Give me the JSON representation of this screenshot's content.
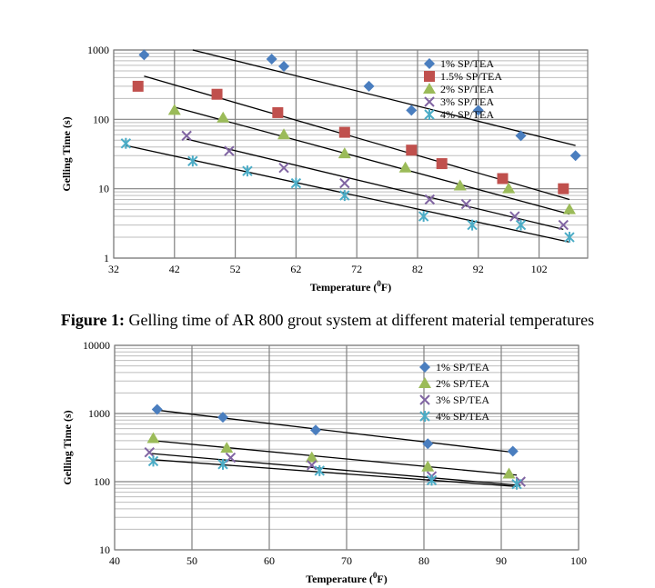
{
  "caption": {
    "label": "Figure 1:",
    "text": " Gelling time of AR 800 grout system at different material temperatures"
  },
  "chart_data": [
    {
      "type": "scatter",
      "xlabel": "Temperature (",
      "xlabel_sup": "0",
      "xlabel_unit": "F)",
      "ylabel": "Gelling Time (s)",
      "yscale": "log",
      "xlim": [
        32,
        110
      ],
      "ylim": [
        1,
        1000
      ],
      "xticks": [
        32,
        42,
        52,
        62,
        72,
        82,
        92,
        102
      ],
      "yticks": [
        1,
        10,
        100,
        1000
      ],
      "grid": true,
      "legend_position": "top-right",
      "series": [
        {
          "name": "1% SP/TEA",
          "marker": "diamond",
          "color": "#4a7ebf",
          "x": [
            37,
            58,
            60,
            74,
            81,
            92,
            99,
            108
          ],
          "y": [
            850,
            740,
            580,
            300,
            135,
            135,
            58,
            30
          ],
          "trend": [
            [
              45,
              1000
            ],
            [
              108,
              42
            ]
          ]
        },
        {
          "name": "1.5% SP/TEA",
          "marker": "square",
          "color": "#c0504d",
          "x": [
            36,
            49,
            59,
            70,
            81,
            86,
            96,
            106
          ],
          "y": [
            300,
            230,
            125,
            65,
            36,
            23,
            14,
            10
          ],
          "trend": [
            [
              37,
              420
            ],
            [
              107,
              7
            ]
          ]
        },
        {
          "name": "2% SP/TEA",
          "marker": "triangle",
          "color": "#9bbb59",
          "x": [
            42,
            50,
            60,
            70,
            80,
            89,
            97,
            107
          ],
          "y": [
            135,
            105,
            60,
            32,
            20,
            11,
            10,
            5
          ],
          "trend": [
            [
              42,
              150
            ],
            [
              107,
              4.3
            ]
          ]
        },
        {
          "name": "3% SP/TEA",
          "marker": "x",
          "color": "#8064a2",
          "x": [
            44,
            51,
            60,
            70,
            84,
            90,
            98,
            106
          ],
          "y": [
            58,
            35,
            20,
            12,
            7,
            6,
            4,
            3
          ],
          "trend": [
            [
              44,
              52
            ],
            [
              106,
              2.6
            ]
          ]
        },
        {
          "name": "4% SP/TEA",
          "marker": "star",
          "color": "#4bacc6",
          "x": [
            34,
            45,
            54,
            62,
            70,
            83,
            91,
            99,
            107
          ],
          "y": [
            45,
            25,
            18,
            12,
            8,
            4,
            3,
            3,
            2
          ],
          "trend": [
            [
              34,
              42
            ],
            [
              107,
              1.7
            ]
          ]
        }
      ]
    },
    {
      "type": "scatter",
      "xlabel": "Temperature (",
      "xlabel_sup": "0",
      "xlabel_unit": "F)",
      "ylabel": "Gelling Time (s)",
      "yscale": "log",
      "xlim": [
        40,
        100
      ],
      "ylim": [
        10,
        10000
      ],
      "xticks": [
        40,
        50,
        60,
        70,
        80,
        90,
        100
      ],
      "yticks": [
        10,
        100,
        1000,
        10000
      ],
      "grid": true,
      "legend_position": "top-right",
      "series": [
        {
          "name": "1% SP/TEA",
          "marker": "diamond",
          "color": "#4a7ebf",
          "x": [
            45.5,
            54,
            66,
            80.5,
            91.5
          ],
          "y": [
            1150,
            880,
            570,
            360,
            280
          ],
          "trend": [
            [
              45.5,
              1120
            ],
            [
              91.5,
              270
            ]
          ]
        },
        {
          "name": "2% SP/TEA",
          "marker": "triangle",
          "color": "#9bbb59",
          "x": [
            45,
            54.5,
            65.5,
            80.5,
            91
          ],
          "y": [
            430,
            310,
            225,
            165,
            130
          ],
          "trend": [
            [
              45,
              400
            ],
            [
              92,
              125
            ]
          ]
        },
        {
          "name": "3% SP/TEA",
          "marker": "x",
          "color": "#8064a2",
          "x": [
            44.5,
            55,
            65.5,
            81,
            92.5
          ],
          "y": [
            270,
            225,
            175,
            120,
            100
          ],
          "trend": [
            [
              44.5,
              260
            ],
            [
              92.5,
              88
            ]
          ]
        },
        {
          "name": "4% SP/TEA",
          "marker": "star",
          "color": "#4bacc6",
          "x": [
            45,
            54,
            66.5,
            81,
            92
          ],
          "y": [
            200,
            180,
            145,
            105,
            92
          ],
          "trend": [
            [
              45,
              210
            ],
            [
              92,
              85
            ]
          ]
        }
      ]
    }
  ]
}
